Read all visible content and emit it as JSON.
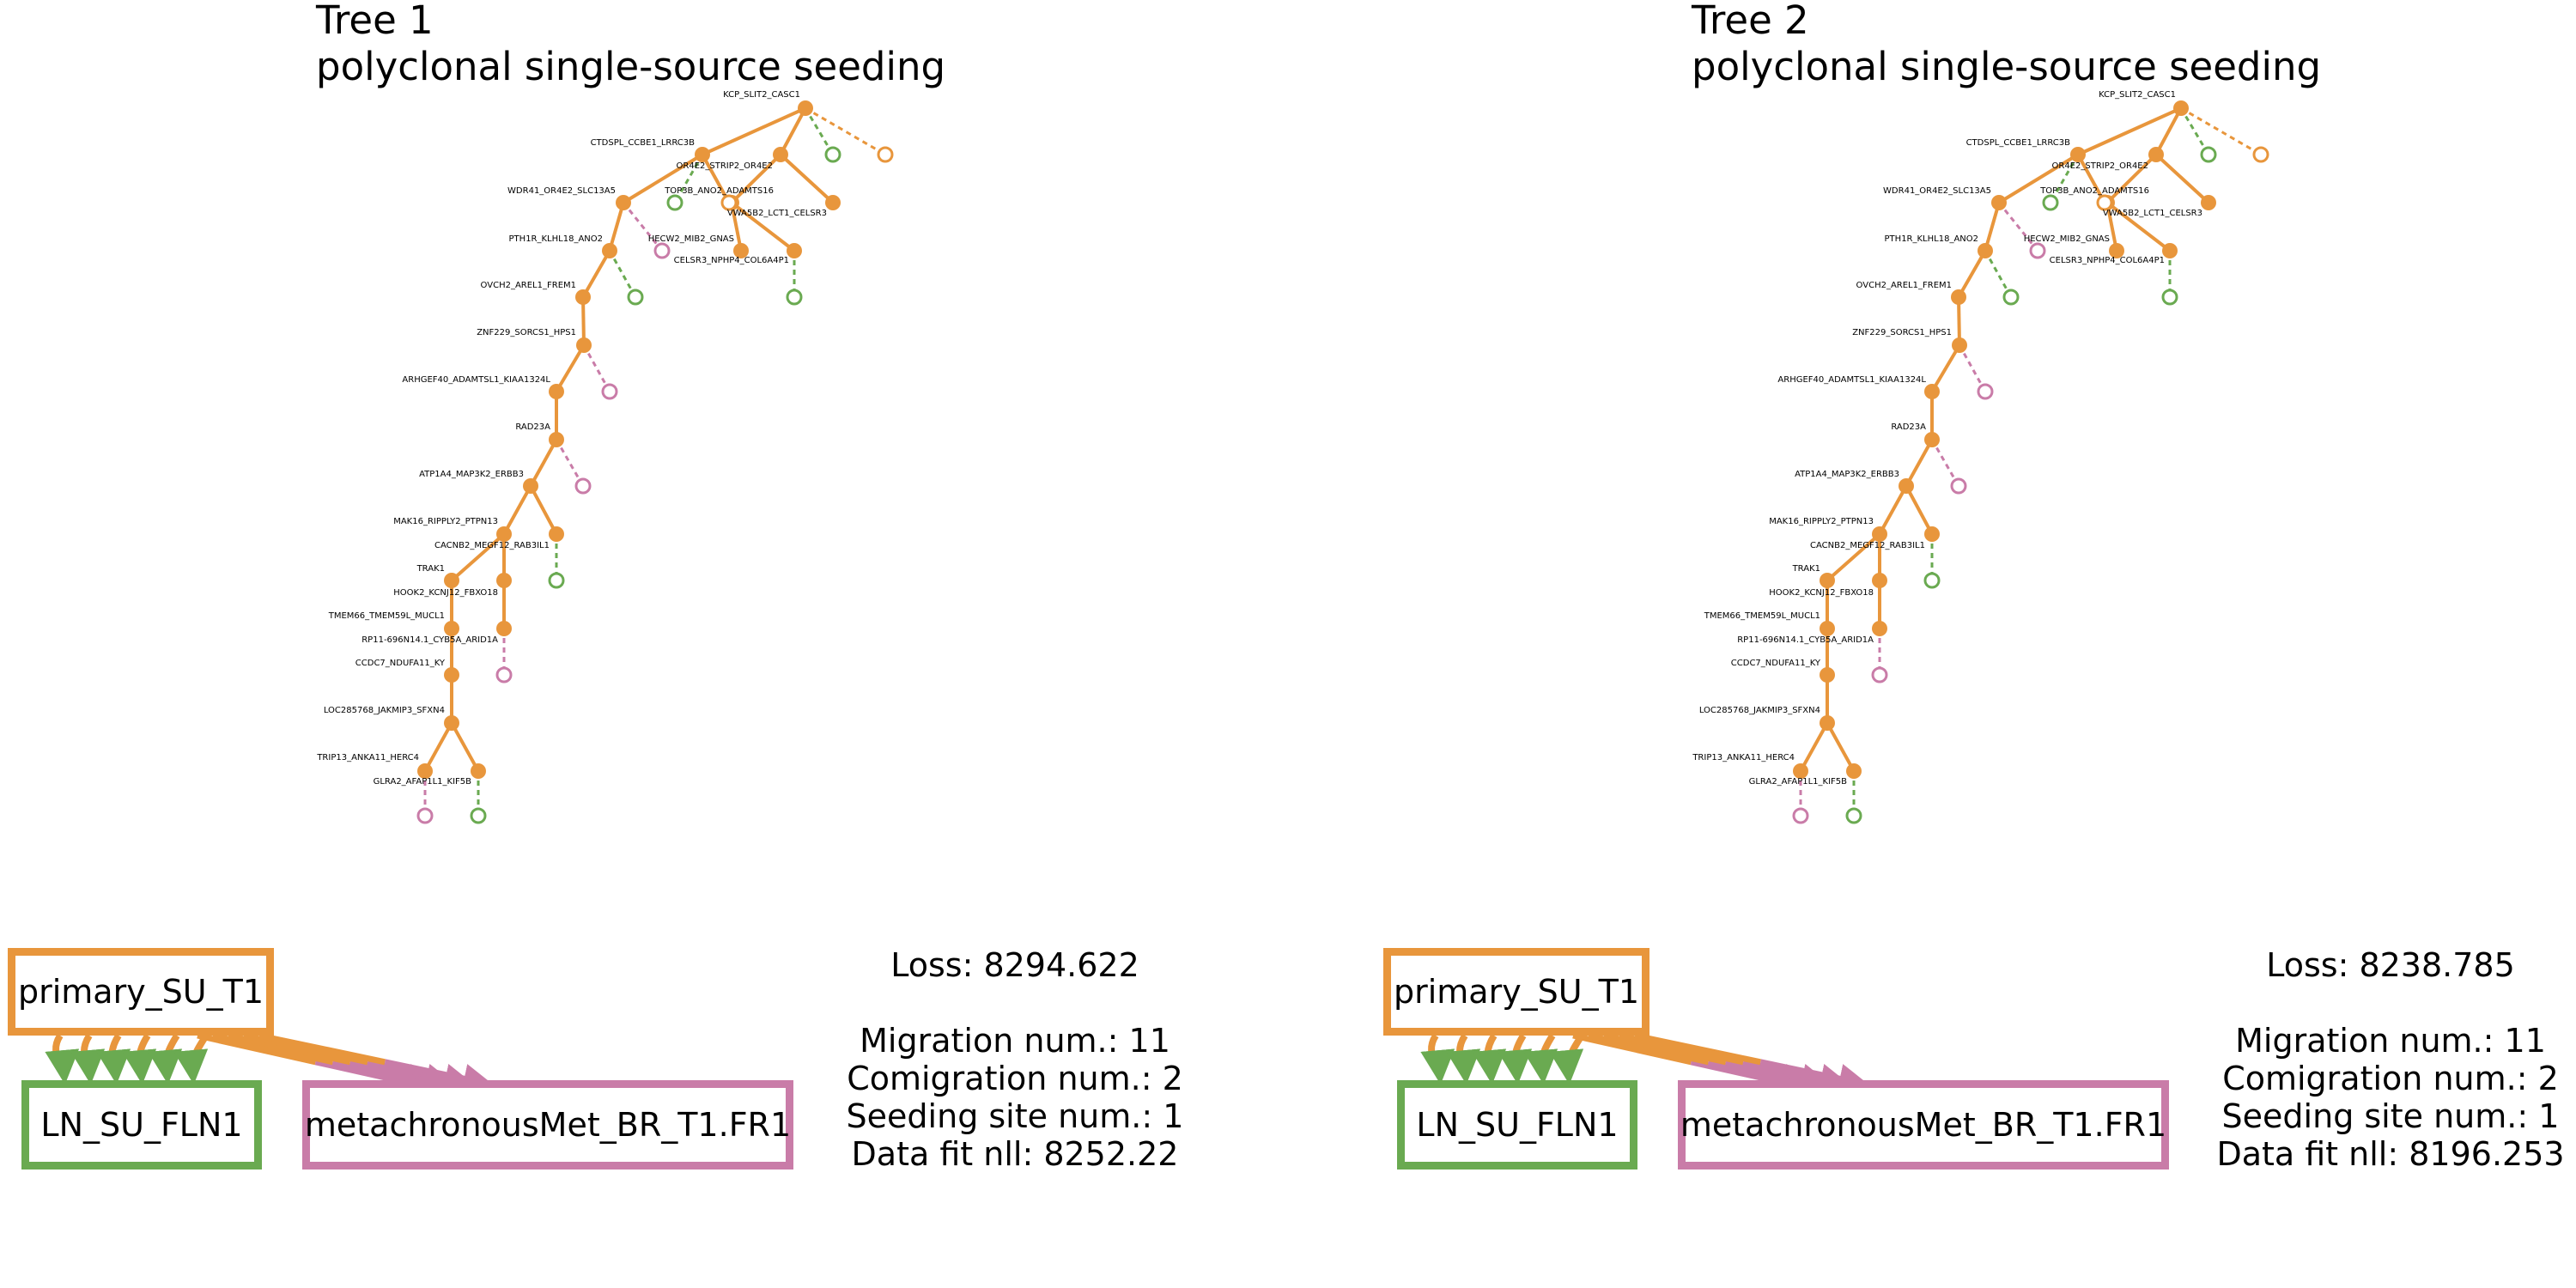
{
  "colors": {
    "primary": "#e8963c",
    "ln": "#6aaa51",
    "met": "#c97ca8"
  },
  "panels": [
    {
      "title_line1": "Tree 1",
      "title_line2": "polyclonal single-source seeding",
      "tree_labels": [
        "KCP_SLIT2_CASC1",
        "CTDSPL_CCBE1_LRRC3B",
        "OR4E2_STRIP2_OR4E2",
        "WDR41_OR4E2_SLC13A5",
        "TOP3B_ANO2_ADAMTS16",
        "VWA5B2_LCT1_CELSR3",
        "PTH1R_KLHL18_ANO2",
        "HECW2_MIB2_GNAS",
        "CELSR3_NPHP4_COL6A4P1",
        "OVCH2_AREL1_FREM1",
        "ZNF229_SORCS1_HPS1",
        "ARHGEF40_ADAMTSL1_KIAA1324L",
        "RAD23A",
        "ATP1A4_MAP3K2_ERBB3",
        "MAK16_RIPPLY2_PTPN13",
        "CACNB2_MEGF12_RAB3IL1",
        "TRAK1",
        "HOOK2_KCNJ12_FBXO18",
        "TMEM66_TMEM59L_MUCL1",
        "RP11-696N14.1_CYB5A_ARID1A",
        "CCDC7_NDUFA11_KY",
        "LOC285768_JAKMIP3_SFXN4",
        "TRIP13_ANKA11_HERC4",
        "GLRA2_AFAP1L1_KIF5B"
      ],
      "sites": {
        "primary": "primary_SU_T1",
        "ln": "LN_SU_FLN1",
        "met": "metachronousMet_BR_T1.FR1"
      },
      "stats": {
        "loss": "Loss: 8294.622",
        "migration": "Migration num.: 11",
        "comigration": "Comigration num.: 2",
        "seeding": "Seeding site num.: 1",
        "nll": "Data fit nll: 8252.22"
      }
    },
    {
      "title_line1": "Tree 2",
      "title_line2": "polyclonal single-source seeding",
      "tree_labels": [
        "KCP_SLIT2_CASC1",
        "CTDSPL_CCBE1_LRRC3B",
        "OR4E2_STRIP2_OR4E2",
        "WDR41_OR4E2_SLC13A5",
        "TOP3B_ANO2_ADAMTS16",
        "VWA5B2_LCT1_CELSR3",
        "PTH1R_KLHL18_ANO2",
        "HECW2_MIB2_GNAS",
        "CELSR3_NPHP4_COL6A4P1",
        "OVCH2_AREL1_FREM1",
        "ZNF229_SORCS1_HPS1",
        "ARHGEF40_ADAMTSL1_KIAA1324L",
        "RAD23A",
        "ATP1A4_MAP3K2_ERBB3",
        "MAK16_RIPPLY2_PTPN13",
        "CACNB2_MEGF12_RAB3IL1",
        "TRAK1",
        "HOOK2_KCNJ12_FBXO18",
        "TMEM66_TMEM59L_MUCL1",
        "RP11-696N14.1_CYB5A_ARID1A",
        "CCDC7_NDUFA11_KY",
        "LOC285768_JAKMIP3_SFXN4",
        "TRIP13_ANKA11_HERC4",
        "GLRA2_AFAP1L1_KIF5B"
      ],
      "sites": {
        "primary": "primary_SU_T1",
        "ln": "LN_SU_FLN1",
        "met": "metachronousMet_BR_T1.FR1"
      },
      "stats": {
        "loss": "Loss: 8238.785",
        "migration": "Migration num.: 11",
        "comigration": "Comigration num.: 2",
        "seeding": "Seeding site num.: 1",
        "nll": "Data fit nll: 8196.253"
      }
    }
  ]
}
